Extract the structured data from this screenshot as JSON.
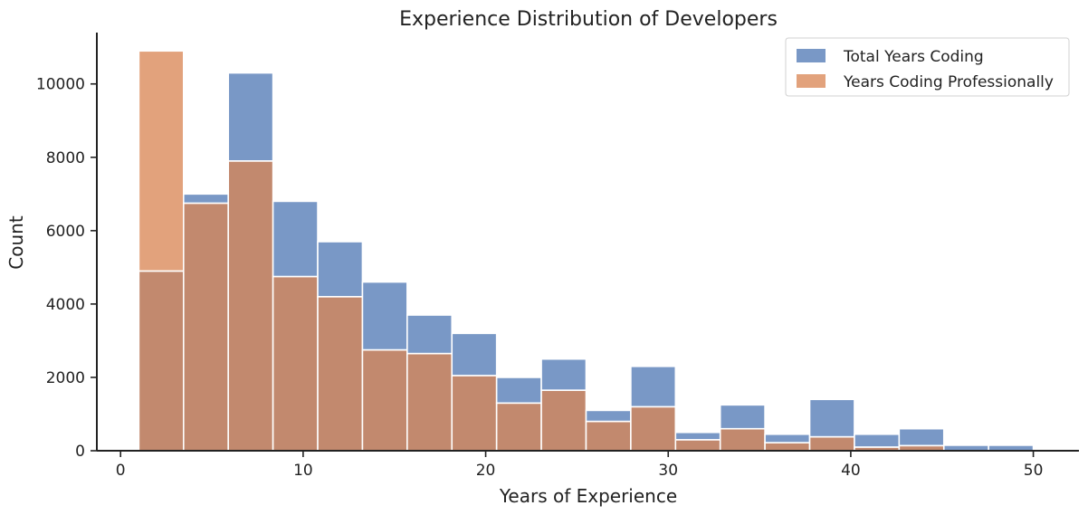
{
  "chart_data": {
    "type": "bar",
    "title": "Experience Distribution of Developers",
    "xlabel": "Years of Experience",
    "ylabel": "Count",
    "xlim": [
      -1.3,
      52.5
    ],
    "ylim": [
      0,
      11400
    ],
    "xticks": [
      0,
      10,
      20,
      30,
      40,
      50
    ],
    "yticks": [
      0,
      2000,
      4000,
      6000,
      8000,
      10000
    ],
    "bin_edges": [
      1,
      3.45,
      5.9,
      8.35,
      10.8,
      13.25,
      15.7,
      18.15,
      20.6,
      23.05,
      25.5,
      27.95,
      30.4,
      32.85,
      35.3,
      37.75,
      40.2,
      42.65,
      45.1,
      47.55,
      50
    ],
    "legend_position": "top-right",
    "series": [
      {
        "name": "Total Years Coding",
        "color": "#7998c6",
        "values": [
          4900,
          7000,
          10300,
          6800,
          5700,
          4600,
          3700,
          3200,
          2000,
          2500,
          1100,
          2300,
          500,
          1250,
          450,
          1400,
          450,
          600,
          150,
          150
        ]
      },
      {
        "name": "Years Coding Professionally",
        "color": "#e2a27c",
        "values": [
          10900,
          6750,
          7900,
          4750,
          4200,
          2750,
          2650,
          2050,
          1300,
          1650,
          800,
          1200,
          300,
          600,
          220,
          380,
          100,
          140,
          0,
          0
        ]
      }
    ],
    "overlap_color": "#c2896e"
  }
}
